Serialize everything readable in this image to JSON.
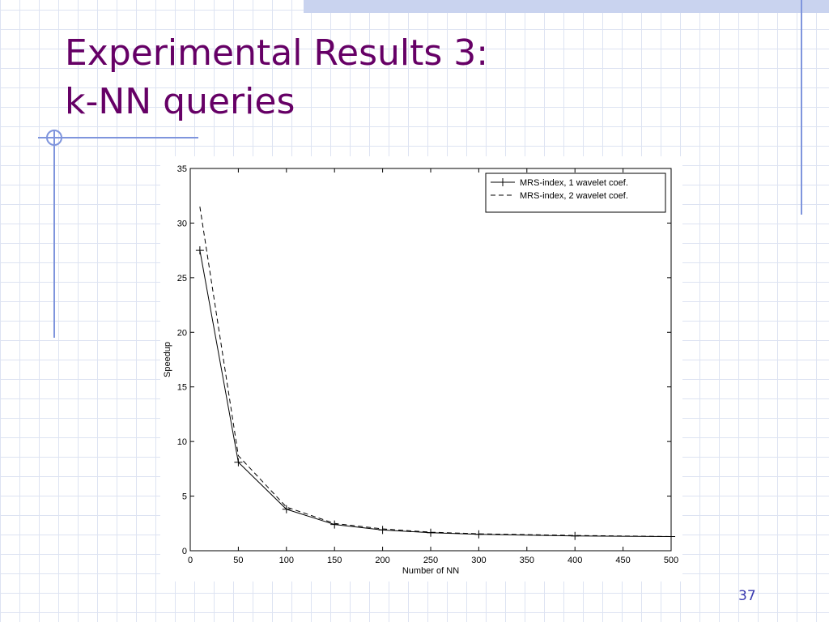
{
  "slide": {
    "title_lines": [
      "Experimental Results 3:",
      "k-NN queries"
    ],
    "page_number": "37"
  },
  "chart_data": {
    "type": "line",
    "x_label": "Number of NN",
    "y_label": "Speedup",
    "x": [
      10,
      50,
      100,
      150,
      200,
      250,
      300,
      400,
      500
    ],
    "series": [
      {
        "name": "MRS-index, 1 wavelet coef.",
        "color": "#000000",
        "style": "solid",
        "marker": "plus",
        "values": [
          27.5,
          8.1,
          3.8,
          2.4,
          1.9,
          1.65,
          1.5,
          1.35,
          1.3
        ]
      },
      {
        "name": "MRS-index, 2 wavelet coef.",
        "color": "#000000",
        "style": "dashed",
        "marker": "none",
        "values": [
          31.5,
          8.7,
          4.0,
          2.5,
          2.0,
          1.7,
          1.55,
          1.4,
          1.3
        ]
      }
    ],
    "xlim": [
      0,
      500
    ],
    "xticks": [
      0,
      50,
      100,
      150,
      200,
      250,
      300,
      350,
      400,
      450,
      500
    ],
    "ylim": [
      0,
      35
    ],
    "yticks": [
      0,
      5,
      10,
      15,
      20,
      25,
      30,
      35
    ],
    "grid": false,
    "legend": "top-right"
  }
}
